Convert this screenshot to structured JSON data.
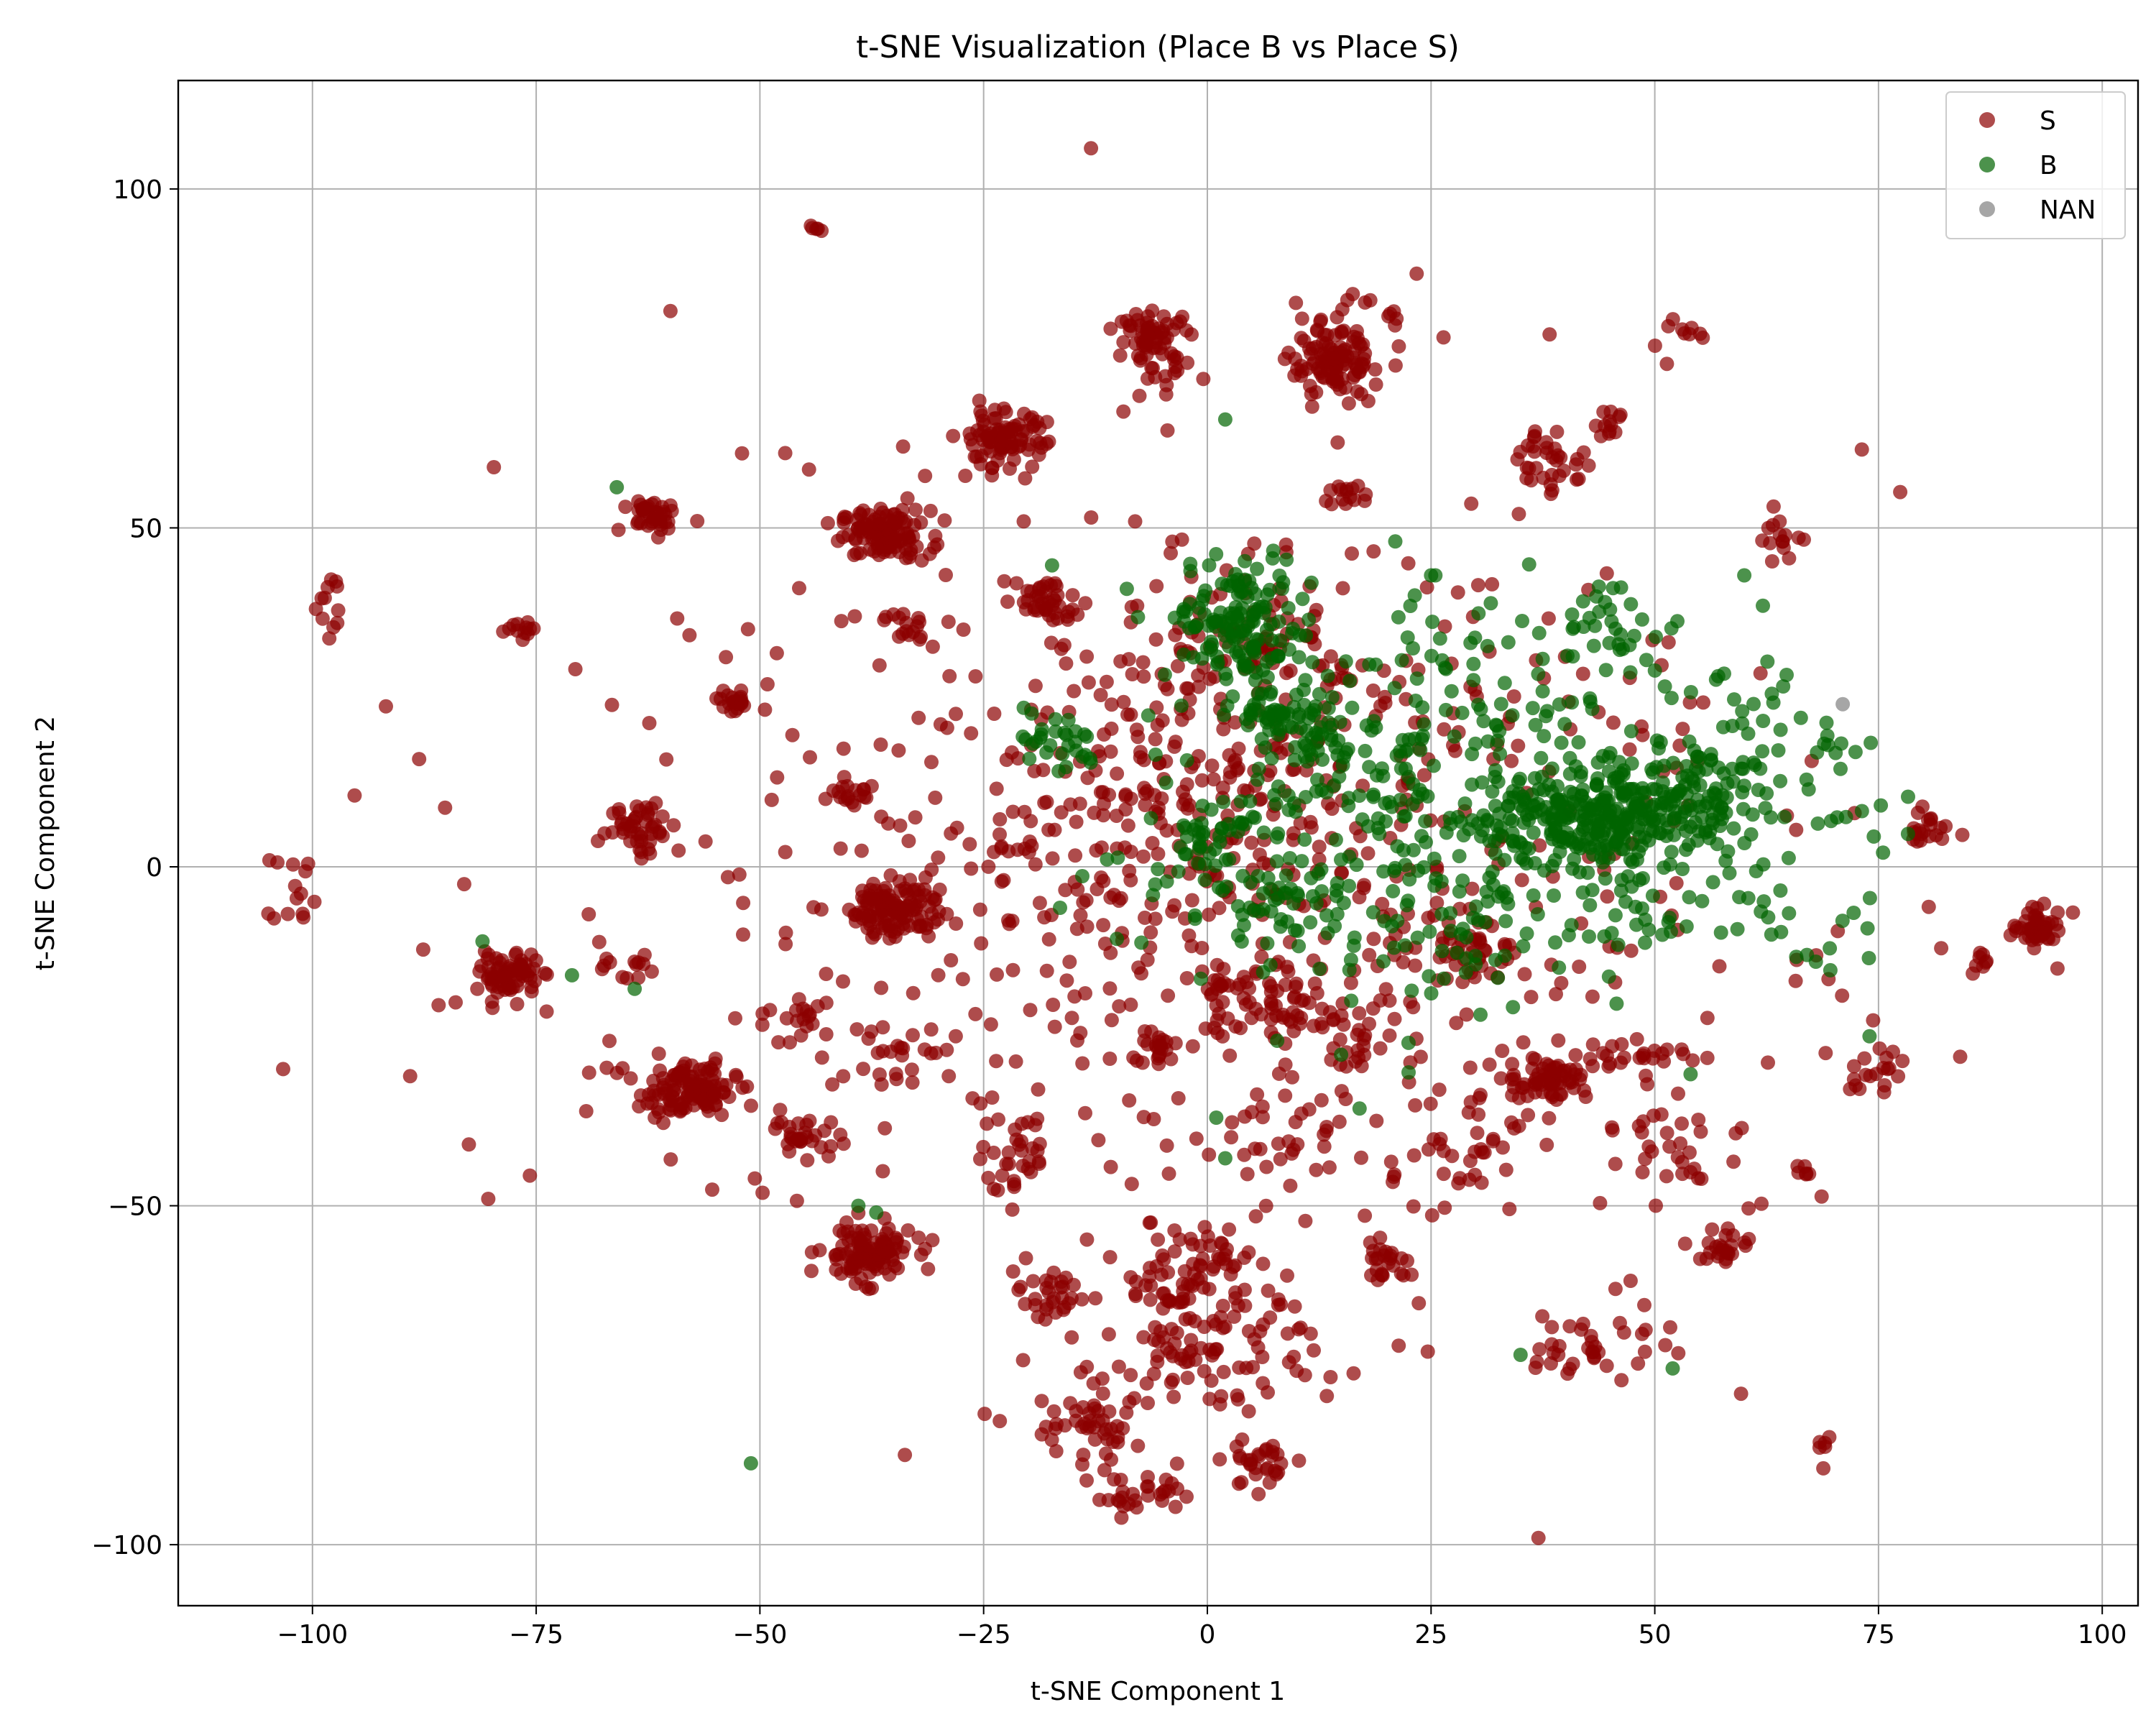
{
  "chart_data": {
    "type": "scatter",
    "title": "t-SNE Visualization (Place B vs Place S)",
    "xlabel": "t-SNE Component 1",
    "ylabel": "t-SNE Component 2",
    "xlim": [
      -115,
      104
    ],
    "ylim": [
      -109,
      116
    ],
    "xticks": [
      -100,
      -75,
      -50,
      -25,
      0,
      25,
      50,
      75,
      100
    ],
    "xtick_labels": [
      "−100",
      "−75",
      "−50",
      "−25",
      "0",
      "25",
      "50",
      "75",
      "100"
    ],
    "yticks": [
      -100,
      -50,
      0,
      50,
      100
    ],
    "ytick_labels": [
      "−100",
      "−50",
      "0",
      "50",
      "100"
    ],
    "grid": true,
    "legend_position": "upper right",
    "series": [
      {
        "name": "S",
        "color": "#8b0000",
        "clusters": [
          {
            "cx": -36,
            "cy": 49,
            "sx": 2.5,
            "sy": 1.8,
            "n": 120
          },
          {
            "cx": -35,
            "cy": -6,
            "sx": 2.5,
            "sy": 2.2,
            "n": 120
          },
          {
            "cx": -58,
            "cy": -33,
            "sx": 2.7,
            "sy": 2.0,
            "n": 120
          },
          {
            "cx": -38,
            "cy": -57,
            "sx": 2.5,
            "sy": 2.0,
            "n": 120
          },
          {
            "cx": -78,
            "cy": -16,
            "sx": 1.6,
            "sy": 1.6,
            "n": 70
          },
          {
            "cx": 14,
            "cy": 74,
            "sx": 2.3,
            "sy": 2.4,
            "n": 100
          },
          {
            "cx": -23,
            "cy": 63,
            "sx": 2.5,
            "sy": 2.2,
            "n": 90
          },
          {
            "cx": -6,
            "cy": 78,
            "sx": 2.0,
            "sy": 1.8,
            "n": 60
          },
          {
            "cx": -62,
            "cy": 52,
            "sx": 1.6,
            "sy": 1.3,
            "n": 40
          },
          {
            "cx": -63,
            "cy": 6,
            "sx": 2.0,
            "sy": 2.0,
            "n": 45
          },
          {
            "cx": 38,
            "cy": -31,
            "sx": 2.4,
            "sy": 1.8,
            "n": 70
          },
          {
            "cx": 93,
            "cy": -9,
            "sx": 1.5,
            "sy": 1.3,
            "n": 50
          },
          {
            "cx": -18,
            "cy": 39,
            "sx": 1.6,
            "sy": 1.8,
            "n": 40
          },
          {
            "cx": 5,
            "cy": 33,
            "sx": 4.5,
            "sy": 3.5,
            "n": 60
          },
          {
            "cx": -2,
            "cy": -60,
            "sx": 4.0,
            "sy": 4.0,
            "n": 80
          },
          {
            "cx": 0,
            "cy": -72,
            "sx": 6.0,
            "sy": 4.0,
            "n": 80
          },
          {
            "cx": -13,
            "cy": -83,
            "sx": 4.0,
            "sy": 3.0,
            "n": 50
          },
          {
            "cx": -7,
            "cy": -93,
            "sx": 3.0,
            "sy": 1.5,
            "n": 30
          },
          {
            "cx": 6,
            "cy": -88,
            "sx": 2.0,
            "sy": 2.0,
            "n": 30
          },
          {
            "cx": 5,
            "cy": -20,
            "sx": 4.0,
            "sy": 3.5,
            "n": 60
          },
          {
            "cx": 30,
            "cy": -13,
            "sx": 4.0,
            "sy": 2.0,
            "n": 40
          },
          {
            "cx": 20,
            "cy": -58,
            "sx": 1.5,
            "sy": 1.5,
            "n": 25
          },
          {
            "cx": -45,
            "cy": -40,
            "sx": 2.0,
            "sy": 1.5,
            "n": 30
          },
          {
            "cx": -17,
            "cy": -63,
            "sx": 2.0,
            "sy": 2.0,
            "n": 30
          },
          {
            "cx": 58,
            "cy": -56,
            "sx": 1.5,
            "sy": 1.5,
            "n": 25
          },
          {
            "cx": 44,
            "cy": -70,
            "sx": 4.0,
            "sy": 3.0,
            "n": 35
          },
          {
            "cx": 38,
            "cy": 60,
            "sx": 2.5,
            "sy": 2.5,
            "n": 35
          },
          {
            "cx": 45,
            "cy": 65,
            "sx": 0.8,
            "sy": 1.0,
            "n": 12
          },
          {
            "cx": 19,
            "cy": 79,
            "sx": 3.0,
            "sy": 3.5,
            "n": 25
          },
          {
            "cx": -53,
            "cy": 24,
            "sx": 1.0,
            "sy": 0.8,
            "n": 20
          },
          {
            "cx": -102,
            "cy": -4,
            "sx": 1.5,
            "sy": 3.0,
            "n": 14
          },
          {
            "cx": -98,
            "cy": 38,
            "sx": 1.5,
            "sy": 3.0,
            "n": 12
          },
          {
            "cx": 53,
            "cy": 79,
            "sx": 2.0,
            "sy": 2.0,
            "n": 10
          },
          {
            "cx": 64,
            "cy": 48,
            "sx": 1.5,
            "sy": 2.0,
            "n": 15
          },
          {
            "cx": 80,
            "cy": 6,
            "sx": 1.2,
            "sy": 1.2,
            "n": 20
          },
          {
            "cx": 75,
            "cy": -30,
            "sx": 2.5,
            "sy": 2.0,
            "n": 18
          },
          {
            "cx": 15,
            "cy": -25,
            "sx": 4.0,
            "sy": 3.0,
            "n": 40
          },
          {
            "cx": -22,
            "cy": -42,
            "sx": 3.0,
            "sy": 3.0,
            "n": 30
          },
          {
            "cx": -35,
            "cy": -28,
            "sx": 2.5,
            "sy": 2.5,
            "n": 20
          },
          {
            "cx": -45,
            "cy": -22,
            "sx": 2.0,
            "sy": 2.0,
            "n": 15
          },
          {
            "cx": 52,
            "cy": -40,
            "sx": 2.5,
            "sy": 3.0,
            "n": 25
          },
          {
            "cx": 48,
            "cy": -28,
            "sx": 3.0,
            "sy": 2.0,
            "n": 20
          },
          {
            "cx": 28,
            "cy": -40,
            "sx": 4.0,
            "sy": 4.0,
            "n": 30
          },
          {
            "cx": 10,
            "cy": -40,
            "sx": 4.0,
            "sy": 4.0,
            "n": 25
          },
          {
            "cx": -35,
            "cy": 35,
            "sx": 3.0,
            "sy": 2.0,
            "n": 20
          },
          {
            "cx": -40,
            "cy": 11,
            "sx": 1.5,
            "sy": 1.0,
            "n": 15
          },
          {
            "cx": -6,
            "cy": -27,
            "sx": 1.5,
            "sy": 1.2,
            "n": 20
          },
          {
            "cx": 16,
            "cy": 55,
            "sx": 1.5,
            "sy": 1.0,
            "n": 15
          },
          {
            "cx": -65,
            "cy": -15,
            "sx": 1.5,
            "sy": 1.5,
            "n": 12
          },
          {
            "cx": -77,
            "cy": 35,
            "sx": 0.8,
            "sy": 0.6,
            "n": 12
          },
          {
            "cx": 87,
            "cy": -14,
            "sx": 1.0,
            "sy": 1.5,
            "n": 8
          },
          {
            "cx": 69,
            "cy": -86,
            "sx": 0.5,
            "sy": 1.0,
            "n": 5
          },
          {
            "cx": 67,
            "cy": -45,
            "sx": 0.6,
            "sy": 1.0,
            "n": 6
          },
          {
            "cx": -43,
            "cy": 94,
            "sx": 1.0,
            "sy": 0.5,
            "n": 5
          },
          {
            "cx": -3,
            "cy": 73,
            "sx": 2.0,
            "sy": 2.5,
            "n": 12
          },
          {
            "cx": 0,
            "cy": 10,
            "sx": 20.0,
            "sy": 16.0,
            "n": 420
          },
          {
            "cx": 0,
            "cy": -10,
            "sx": 38.0,
            "sy": 30.0,
            "n": 380
          }
        ],
        "points": [
          {
            "x": -13,
            "y": 106
          },
          {
            "x": -60,
            "y": 82
          },
          {
            "x": -34,
            "y": 62
          },
          {
            "x": -52,
            "y": 61
          },
          {
            "x": -57,
            "y": 51
          },
          {
            "x": 37,
            "y": -99
          },
          {
            "x": -84,
            "y": -20
          },
          {
            "x": 95,
            "y": -15
          },
          {
            "x": 82,
            "y": -12
          },
          {
            "x": 69,
            "y": -85
          }
        ]
      },
      {
        "name": "B",
        "color": "#006400",
        "clusters": [
          {
            "cx": 4,
            "cy": 36,
            "sx": 4.0,
            "sy": 4.5,
            "n": 140
          },
          {
            "cx": 43,
            "cy": 7,
            "sx": 5.0,
            "sy": 3.5,
            "n": 200
          },
          {
            "cx": 54,
            "cy": 9,
            "sx": 4.0,
            "sy": 4.0,
            "n": 90
          },
          {
            "cx": 30,
            "cy": 15,
            "sx": 14.0,
            "sy": 14.0,
            "n": 220
          },
          {
            "cx": 8,
            "cy": 23,
            "sx": 2.5,
            "sy": 2.0,
            "n": 45
          },
          {
            "cx": -17,
            "cy": 18,
            "sx": 2.5,
            "sy": 2.5,
            "n": 30
          },
          {
            "cx": 0,
            "cy": 5,
            "sx": 3.0,
            "sy": 3.0,
            "n": 40
          },
          {
            "cx": 7,
            "cy": -5,
            "sx": 3.0,
            "sy": 2.0,
            "n": 30
          },
          {
            "cx": 13,
            "cy": 18,
            "sx": 2.0,
            "sy": 2.0,
            "n": 25
          },
          {
            "cx": 45,
            "cy": 35,
            "sx": 4.0,
            "sy": 4.0,
            "n": 35
          },
          {
            "cx": 60,
            "cy": 20,
            "sx": 5.0,
            "sy": 5.0,
            "n": 40
          },
          {
            "cx": 70,
            "cy": 10,
            "sx": 4.0,
            "sy": 8.0,
            "n": 20
          },
          {
            "cx": 20,
            "cy": 0,
            "sx": 15.0,
            "sy": 12.0,
            "n": 180
          },
          {
            "cx": 50,
            "cy": -5,
            "sx": 10.0,
            "sy": 5.0,
            "n": 60
          }
        ],
        "points": [
          {
            "x": -66,
            "y": 56
          },
          {
            "x": -81,
            "y": -11
          },
          {
            "x": -71,
            "y": -16
          },
          {
            "x": -64,
            "y": -18
          },
          {
            "x": -51,
            "y": -88
          },
          {
            "x": -39,
            "y": -50
          },
          {
            "x": -37,
            "y": -51
          },
          {
            "x": 2,
            "y": 66
          },
          {
            "x": 52,
            "y": -74
          },
          {
            "x": 35,
            "y": -72
          },
          {
            "x": 60,
            "y": 43
          },
          {
            "x": 67,
            "y": -13
          },
          {
            "x": 68,
            "y": -14
          },
          {
            "x": 2,
            "y": -43
          },
          {
            "x": 1,
            "y": -37
          },
          {
            "x": -9,
            "y": 41
          },
          {
            "x": 74,
            "y": -25
          },
          {
            "x": 25,
            "y": 43
          },
          {
            "x": 21,
            "y": 48
          }
        ]
      },
      {
        "name": "NAN",
        "color": "#808080",
        "clusters": [],
        "points": [
          {
            "x": 71,
            "y": 24
          }
        ]
      }
    ]
  }
}
